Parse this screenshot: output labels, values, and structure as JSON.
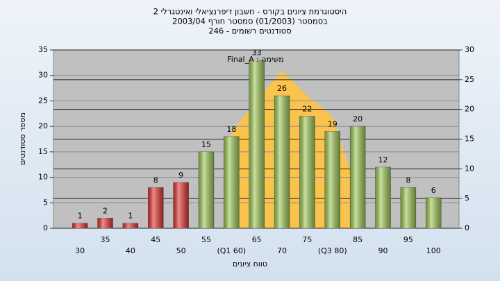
{
  "chart_data": {
    "type": "bar",
    "title": [
      "היסטוגרמת ציונים בקורס - חשבון דיפרנציאלי ואינטגרלי 2",
      "בסמסטר  (01/2003)  סמסטר חורף  2003/04",
      "סטודנטים רשומים - 246"
    ],
    "annotation": "משימה : Final_A",
    "x_label": "טווח ציונים",
    "y_label": "מספר סטודנטים",
    "categories": [
      "30",
      "35",
      "40",
      "45",
      "50",
      "55",
      "(Q1 60)",
      "65",
      "70",
      "75",
      "(Q3 80)",
      "85",
      "90",
      "95",
      "100"
    ],
    "values": [
      1,
      2,
      1,
      8,
      9,
      15,
      18,
      33,
      26,
      22,
      19,
      20,
      12,
      8,
      6
    ],
    "colors": [
      "#e0302c",
      "#e0302c",
      "#e0302c",
      "#e0302c",
      "#e0302c",
      "#9cc653",
      "#9cc653",
      "#9cc653",
      "#9cc653",
      "#9cc653",
      "#9cc653",
      "#9cc653",
      "#9cc653",
      "#9cc653",
      "#9cc653"
    ],
    "overlay": {
      "color": "#ffc341",
      "values": [
        null,
        null,
        null,
        null,
        null,
        null,
        19,
        25,
        31,
        26,
        22,
        7,
        null,
        null,
        null
      ]
    },
    "ylim": [
      0,
      35
    ],
    "yticks": [
      0,
      5,
      10,
      15,
      20,
      25,
      30,
      35
    ],
    "y2lim": [
      0,
      30
    ],
    "y2ticks": [
      0,
      5,
      10,
      15,
      20,
      25,
      30
    ],
    "grid": true
  }
}
